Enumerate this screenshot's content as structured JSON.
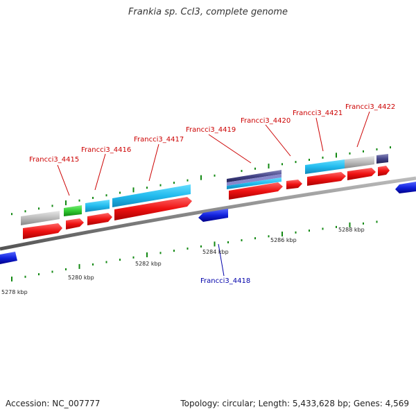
{
  "title": "Frankia sp. CcI3, complete genome",
  "accession": "Accession: NC_007777",
  "summary": "Topology: circular; Length: 5,433,628 bp; Genes: 4,569",
  "colors": {
    "forward_cds": "#ee1111",
    "reverse_cds": "#1122dd",
    "protein": "#22bbee",
    "hypothetical": "#bbbbbb",
    "rna": "#33cc33",
    "other": "#444488",
    "forward_label": "#cc0000",
    "reverse_label": "#0000aa",
    "tick": "#118811"
  },
  "ticks": [
    "5278 kbp",
    "5280 kbp",
    "5282 kbp",
    "5284 kbp",
    "5286 kbp",
    "5288 kbp"
  ],
  "genes_top": [
    {
      "label": "Francci3_4415"
    },
    {
      "label": "Francci3_4416"
    },
    {
      "label": "Francci3_4417"
    },
    {
      "label": "Francci3_4419"
    },
    {
      "label": "Francci3_4420"
    },
    {
      "label": "Francci3_4421"
    },
    {
      "label": "Francci3_4422"
    }
  ],
  "genes_bottom": [
    {
      "label": "Francci3_4418"
    }
  ]
}
